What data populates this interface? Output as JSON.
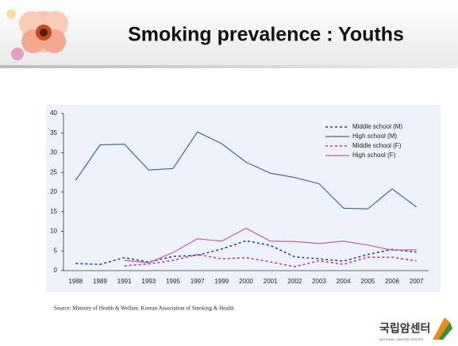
{
  "chart_data": {
    "type": "line",
    "title": "Smoking prevalence : Youths",
    "categories": [
      "1988",
      "1989",
      "1991",
      "1993",
      "1995",
      "1997",
      "1999",
      "2000",
      "2001",
      "2002",
      "2003",
      "2004",
      "2005",
      "2006",
      "2007"
    ],
    "series": [
      {
        "name": "Middle school (M)",
        "color": "#2b3f99",
        "dash": true,
        "values": [
          1.8,
          1.6,
          3.3,
          2.2,
          3.6,
          3.9,
          5.5,
          7.6,
          6.4,
          3.5,
          3.0,
          2.4,
          4.1,
          5.4,
          4.7
        ]
      },
      {
        "name": "High school (M)",
        "color": "#4a5fae",
        "dash": false,
        "values": [
          23,
          32,
          32.2,
          25.6,
          26,
          35.3,
          32.3,
          27.6,
          24.8,
          23.7,
          22.1,
          15.9,
          15.7,
          20.8,
          16.2
        ]
      },
      {
        "name": "Middle school (F)",
        "color": "#c0399a",
        "dash": true,
        "values": [
          null,
          null,
          1.2,
          1.7,
          2.6,
          4.1,
          3.0,
          3.3,
          2.2,
          1.0,
          2.5,
          1.6,
          3.4,
          3.4,
          2.5
        ]
      },
      {
        "name": "High school (F)",
        "color": "#c85aa8",
        "dash": false,
        "values": [
          null,
          null,
          2.6,
          2.0,
          4.6,
          8.1,
          7.5,
          10.8,
          7.5,
          7.4,
          6.9,
          7.5,
          6.5,
          5.2,
          5.3
        ]
      }
    ],
    "ylim": [
      0,
      40
    ],
    "yticks": [
      0,
      5,
      10,
      15,
      20,
      25,
      30,
      35,
      40
    ],
    "source": "Source: Ministry of Health & Welfare, Korean Association of Smoking & Health",
    "logo": "국립암센터",
    "logo_sub": "NATIONAL CANCER CENTER"
  }
}
